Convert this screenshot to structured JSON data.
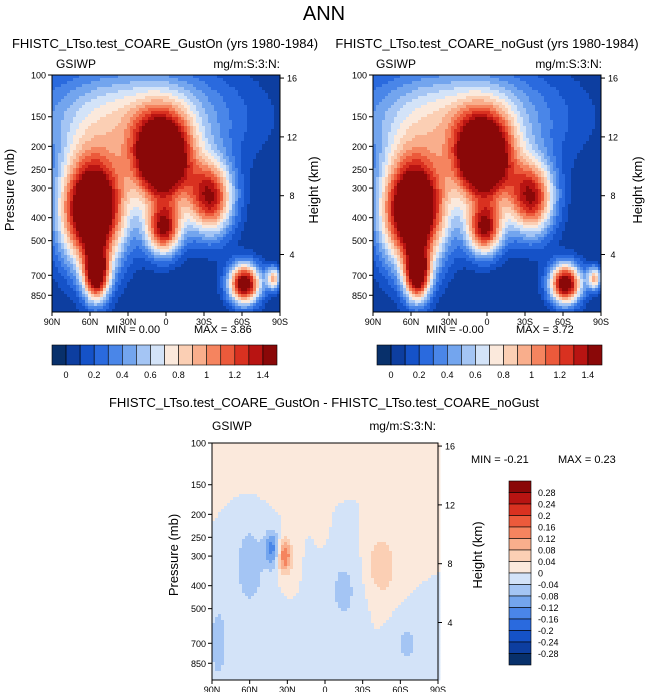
{
  "page_title": "ANN",
  "chart_data": [
    {
      "type": "heatmap",
      "title": "FHISTC_LTso.test_COARE_GustOn (yrs 1980-1984)",
      "var_label": "GSIWP",
      "units_label": "mg/m:S:3:N:",
      "xlabel": "",
      "ylabel": "Pressure (mb)",
      "y2label": "Height (km)",
      "x_ticks": [
        "90N",
        "60N",
        "30N",
        "0",
        "30S",
        "60S",
        "90S"
      ],
      "x_range": [
        90,
        -90
      ],
      "y_ticks": [
        100,
        150,
        200,
        250,
        300,
        400,
        500,
        700,
        850
      ],
      "y_range": [
        1000,
        100
      ],
      "y_log": true,
      "y2_ticks": [
        4,
        8,
        12,
        16
      ],
      "min_text": "MIN =  0.00",
      "max_text": "MAX =  3.86",
      "colorbar": {
        "orientation": "horizontal",
        "labels": [
          "0",
          "0.2",
          "0.4",
          "0.6",
          "0.8",
          "1",
          "1.2",
          "1.4"
        ],
        "levels": [
          0,
          0.1,
          0.2,
          0.3,
          0.4,
          0.5,
          0.6,
          0.7,
          0.8,
          0.9,
          1.0,
          1.1,
          1.2,
          1.3,
          1.4
        ],
        "colors": [
          "#08306b",
          "#0d3ea0",
          "#1552c8",
          "#2a6ade",
          "#4a86e8",
          "#73a5ee",
          "#a4c5f4",
          "#d3e3f8",
          "#fbe9dc",
          "#fbcfb4",
          "#f9ae8c",
          "#f5845f",
          "#ec5a3b",
          "#d93120",
          "#b81412",
          "#8a0808"
        ]
      },
      "blobs": [
        {
          "lat": 58,
          "p": 370,
          "amp": 2.0,
          "slat": 18,
          "sp": 0.38
        },
        {
          "lat": 55,
          "p": 700,
          "amp": 1.4,
          "slat": 7,
          "sp": 0.18
        },
        {
          "lat": 3,
          "p": 230,
          "amp": 1.9,
          "slat": 16,
          "sp": 0.3
        },
        {
          "lat": 2,
          "p": 450,
          "amp": 1.3,
          "slat": 10,
          "sp": 0.18
        },
        {
          "lat": -35,
          "p": 330,
          "amp": 1.35,
          "slat": 13,
          "sp": 0.26
        },
        {
          "lat": -62,
          "p": 760,
          "amp": 1.6,
          "slat": 9,
          "sp": 0.14
        },
        {
          "lat": 25,
          "p": 150,
          "amp": 0.75,
          "slat": 55,
          "sp": 0.35
        },
        {
          "lat": -85,
          "p": 720,
          "amp": 0.9,
          "slat": 4,
          "sp": 0.08
        }
      ]
    },
    {
      "type": "heatmap",
      "title": "FHISTC_LTso.test_COARE_noGust (yrs 1980-1984)",
      "var_label": "GSIWP",
      "units_label": "mg/m:S:3:N:",
      "xlabel": "",
      "ylabel": "Pressure (mb)",
      "y2label": "Height (km)",
      "x_ticks": [
        "90N",
        "60N",
        "30N",
        "0",
        "30S",
        "60S",
        "90S"
      ],
      "x_range": [
        90,
        -90
      ],
      "y_ticks": [
        100,
        150,
        200,
        250,
        300,
        400,
        500,
        700,
        850
      ],
      "y_range": [
        1000,
        100
      ],
      "y_log": true,
      "y2_ticks": [
        4,
        8,
        12,
        16
      ],
      "min_text": "MIN = -0.00",
      "max_text": "MAX =  3.72",
      "colorbar": {
        "orientation": "horizontal",
        "labels": [
          "0",
          "0.2",
          "0.4",
          "0.6",
          "0.8",
          "1",
          "1.2",
          "1.4"
        ],
        "levels": [
          0,
          0.1,
          0.2,
          0.3,
          0.4,
          0.5,
          0.6,
          0.7,
          0.8,
          0.9,
          1.0,
          1.1,
          1.2,
          1.3,
          1.4
        ],
        "colors": [
          "#08306b",
          "#0d3ea0",
          "#1552c8",
          "#2a6ade",
          "#4a86e8",
          "#73a5ee",
          "#a4c5f4",
          "#d3e3f8",
          "#fbe9dc",
          "#fbcfb4",
          "#f9ae8c",
          "#f5845f",
          "#ec5a3b",
          "#d93120",
          "#b81412",
          "#8a0808"
        ]
      },
      "blobs": [
        {
          "lat": 58,
          "p": 370,
          "amp": 2.0,
          "slat": 18,
          "sp": 0.38
        },
        {
          "lat": 55,
          "p": 700,
          "amp": 1.4,
          "slat": 7,
          "sp": 0.18
        },
        {
          "lat": 3,
          "p": 230,
          "amp": 1.9,
          "slat": 16,
          "sp": 0.3
        },
        {
          "lat": 2,
          "p": 450,
          "amp": 1.3,
          "slat": 10,
          "sp": 0.18
        },
        {
          "lat": -35,
          "p": 330,
          "amp": 1.35,
          "slat": 13,
          "sp": 0.26
        },
        {
          "lat": -62,
          "p": 760,
          "amp": 1.6,
          "slat": 9,
          "sp": 0.14
        },
        {
          "lat": 25,
          "p": 150,
          "amp": 0.75,
          "slat": 55,
          "sp": 0.35
        },
        {
          "lat": -85,
          "p": 720,
          "amp": 0.9,
          "slat": 4,
          "sp": 0.08
        }
      ]
    },
    {
      "type": "heatmap",
      "title": "FHISTC_LTso.test_COARE_GustOn - FHISTC_LTso.test_COARE_noGust",
      "var_label": "GSIWP",
      "units_label": "mg/m:S:3:N:",
      "xlabel": "",
      "ylabel": "Pressure (mb)",
      "y2label": "Height (km)",
      "x_ticks": [
        "90N",
        "60N",
        "30N",
        "0",
        "30S",
        "60S",
        "90S"
      ],
      "x_range": [
        90,
        -90
      ],
      "y_ticks": [
        100,
        150,
        200,
        250,
        300,
        400,
        500,
        700,
        850
      ],
      "y_range": [
        1000,
        100
      ],
      "y_log": true,
      "y2_ticks": [
        4,
        8,
        12,
        16
      ],
      "min_text": "MIN = -0.21",
      "max_text": "MAX =  0.23",
      "colorbar": {
        "orientation": "vertical",
        "labels": [
          "0.28",
          "0.24",
          "0.2",
          "0.16",
          "0.12",
          "0.08",
          "0.04",
          "0",
          "-0.04",
          "-0.08",
          "-0.12",
          "-0.16",
          "-0.2",
          "-0.24",
          "-0.28"
        ],
        "levels": [
          -0.28,
          -0.24,
          -0.2,
          -0.16,
          -0.12,
          -0.08,
          -0.04,
          0,
          0.04,
          0.08,
          0.12,
          0.16,
          0.2,
          0.24,
          0.28
        ],
        "colors": [
          "#08306b",
          "#0d3ea0",
          "#1552c8",
          "#2a6ade",
          "#4a86e8",
          "#73a5ee",
          "#a4c5f4",
          "#d3e3f8",
          "#fbe9dc",
          "#fbcfb4",
          "#f9ae8c",
          "#f5845f",
          "#ec5a3b",
          "#d93120",
          "#b81412",
          "#8a0808"
        ]
      },
      "blobs": [
        {
          "lat": 32,
          "p": 300,
          "amp": 0.16,
          "slat": 4,
          "sp": 0.12
        },
        {
          "lat": 42,
          "p": 280,
          "amp": -0.13,
          "slat": 4,
          "sp": 0.12
        },
        {
          "lat": 60,
          "p": 330,
          "amp": -0.06,
          "slat": 10,
          "sp": 0.35
        },
        {
          "lat": -45,
          "p": 330,
          "amp": 0.07,
          "slat": 9,
          "sp": 0.22
        },
        {
          "lat": -15,
          "p": 420,
          "amp": -0.05,
          "slat": 10,
          "sp": 0.3
        },
        {
          "lat": 2,
          "p": 200,
          "amp": 0.04,
          "slat": 3,
          "sp": 0.15
        },
        {
          "lat": 85,
          "p": 700,
          "amp": -0.06,
          "slat": 6,
          "sp": 0.3
        },
        {
          "lat": 45,
          "p": 120,
          "amp": 0.02,
          "slat": 30,
          "sp": 0.25
        },
        {
          "lat": -65,
          "p": 700,
          "amp": -0.05,
          "slat": 8,
          "sp": 0.18
        }
      ]
    }
  ]
}
